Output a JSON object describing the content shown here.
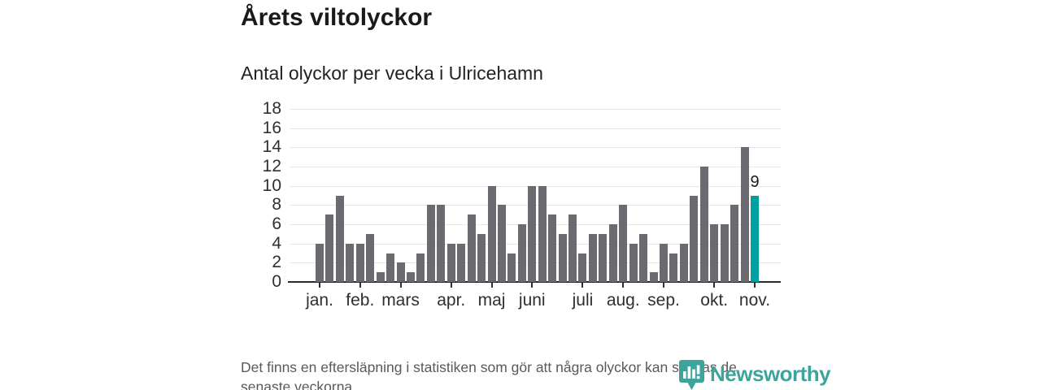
{
  "header": {
    "title": "Årets viltolyckor",
    "subtitle": "Antal olyckor per vecka i Ulricehamn"
  },
  "chart_data": {
    "type": "bar",
    "title": "Årets viltolyckor",
    "subtitle": "Antal olyckor per vecka i Ulricehamn",
    "x_unit": "vecka",
    "values": [
      4,
      7,
      9,
      4,
      4,
      5,
      1,
      3,
      2,
      1,
      3,
      8,
      8,
      4,
      4,
      7,
      5,
      10,
      8,
      3,
      6,
      10,
      10,
      7,
      5,
      7,
      3,
      5,
      5,
      6,
      8,
      4,
      5,
      1,
      4,
      3,
      4,
      9,
      12,
      6,
      6,
      8,
      14,
      9
    ],
    "month_ticks": [
      {
        "label": "jan.",
        "index": 0
      },
      {
        "label": "feb.",
        "index": 4
      },
      {
        "label": "mars",
        "index": 8
      },
      {
        "label": "apr.",
        "index": 13
      },
      {
        "label": "maj",
        "index": 17
      },
      {
        "label": "juni",
        "index": 21
      },
      {
        "label": "juli",
        "index": 26
      },
      {
        "label": "aug.",
        "index": 30
      },
      {
        "label": "sep.",
        "index": 34
      },
      {
        "label": "okt.",
        "index": 39
      },
      {
        "label": "nov.",
        "index": 43
      }
    ],
    "ylim": [
      0,
      18
    ],
    "yticks": [
      0,
      2,
      4,
      6,
      8,
      10,
      12,
      14,
      16,
      18
    ],
    "grid": true,
    "legend": "none",
    "bar_color": "#6a6a70",
    "highlight_color": "#00a0a0",
    "highlight_index": 43,
    "highlight_label": "9",
    "axis_color": "#2b2b2b",
    "gridline_color": "#e7e7e7",
    "label_color": "#2f2f2f"
  },
  "footer": {
    "note_lines": [
      "Det finns en eftersläpning i statistiken som gör att några olyckor kan saknas de",
      "senaste veckorna."
    ],
    "brand": "Newsworthy",
    "brand_color": "#3da49c"
  }
}
